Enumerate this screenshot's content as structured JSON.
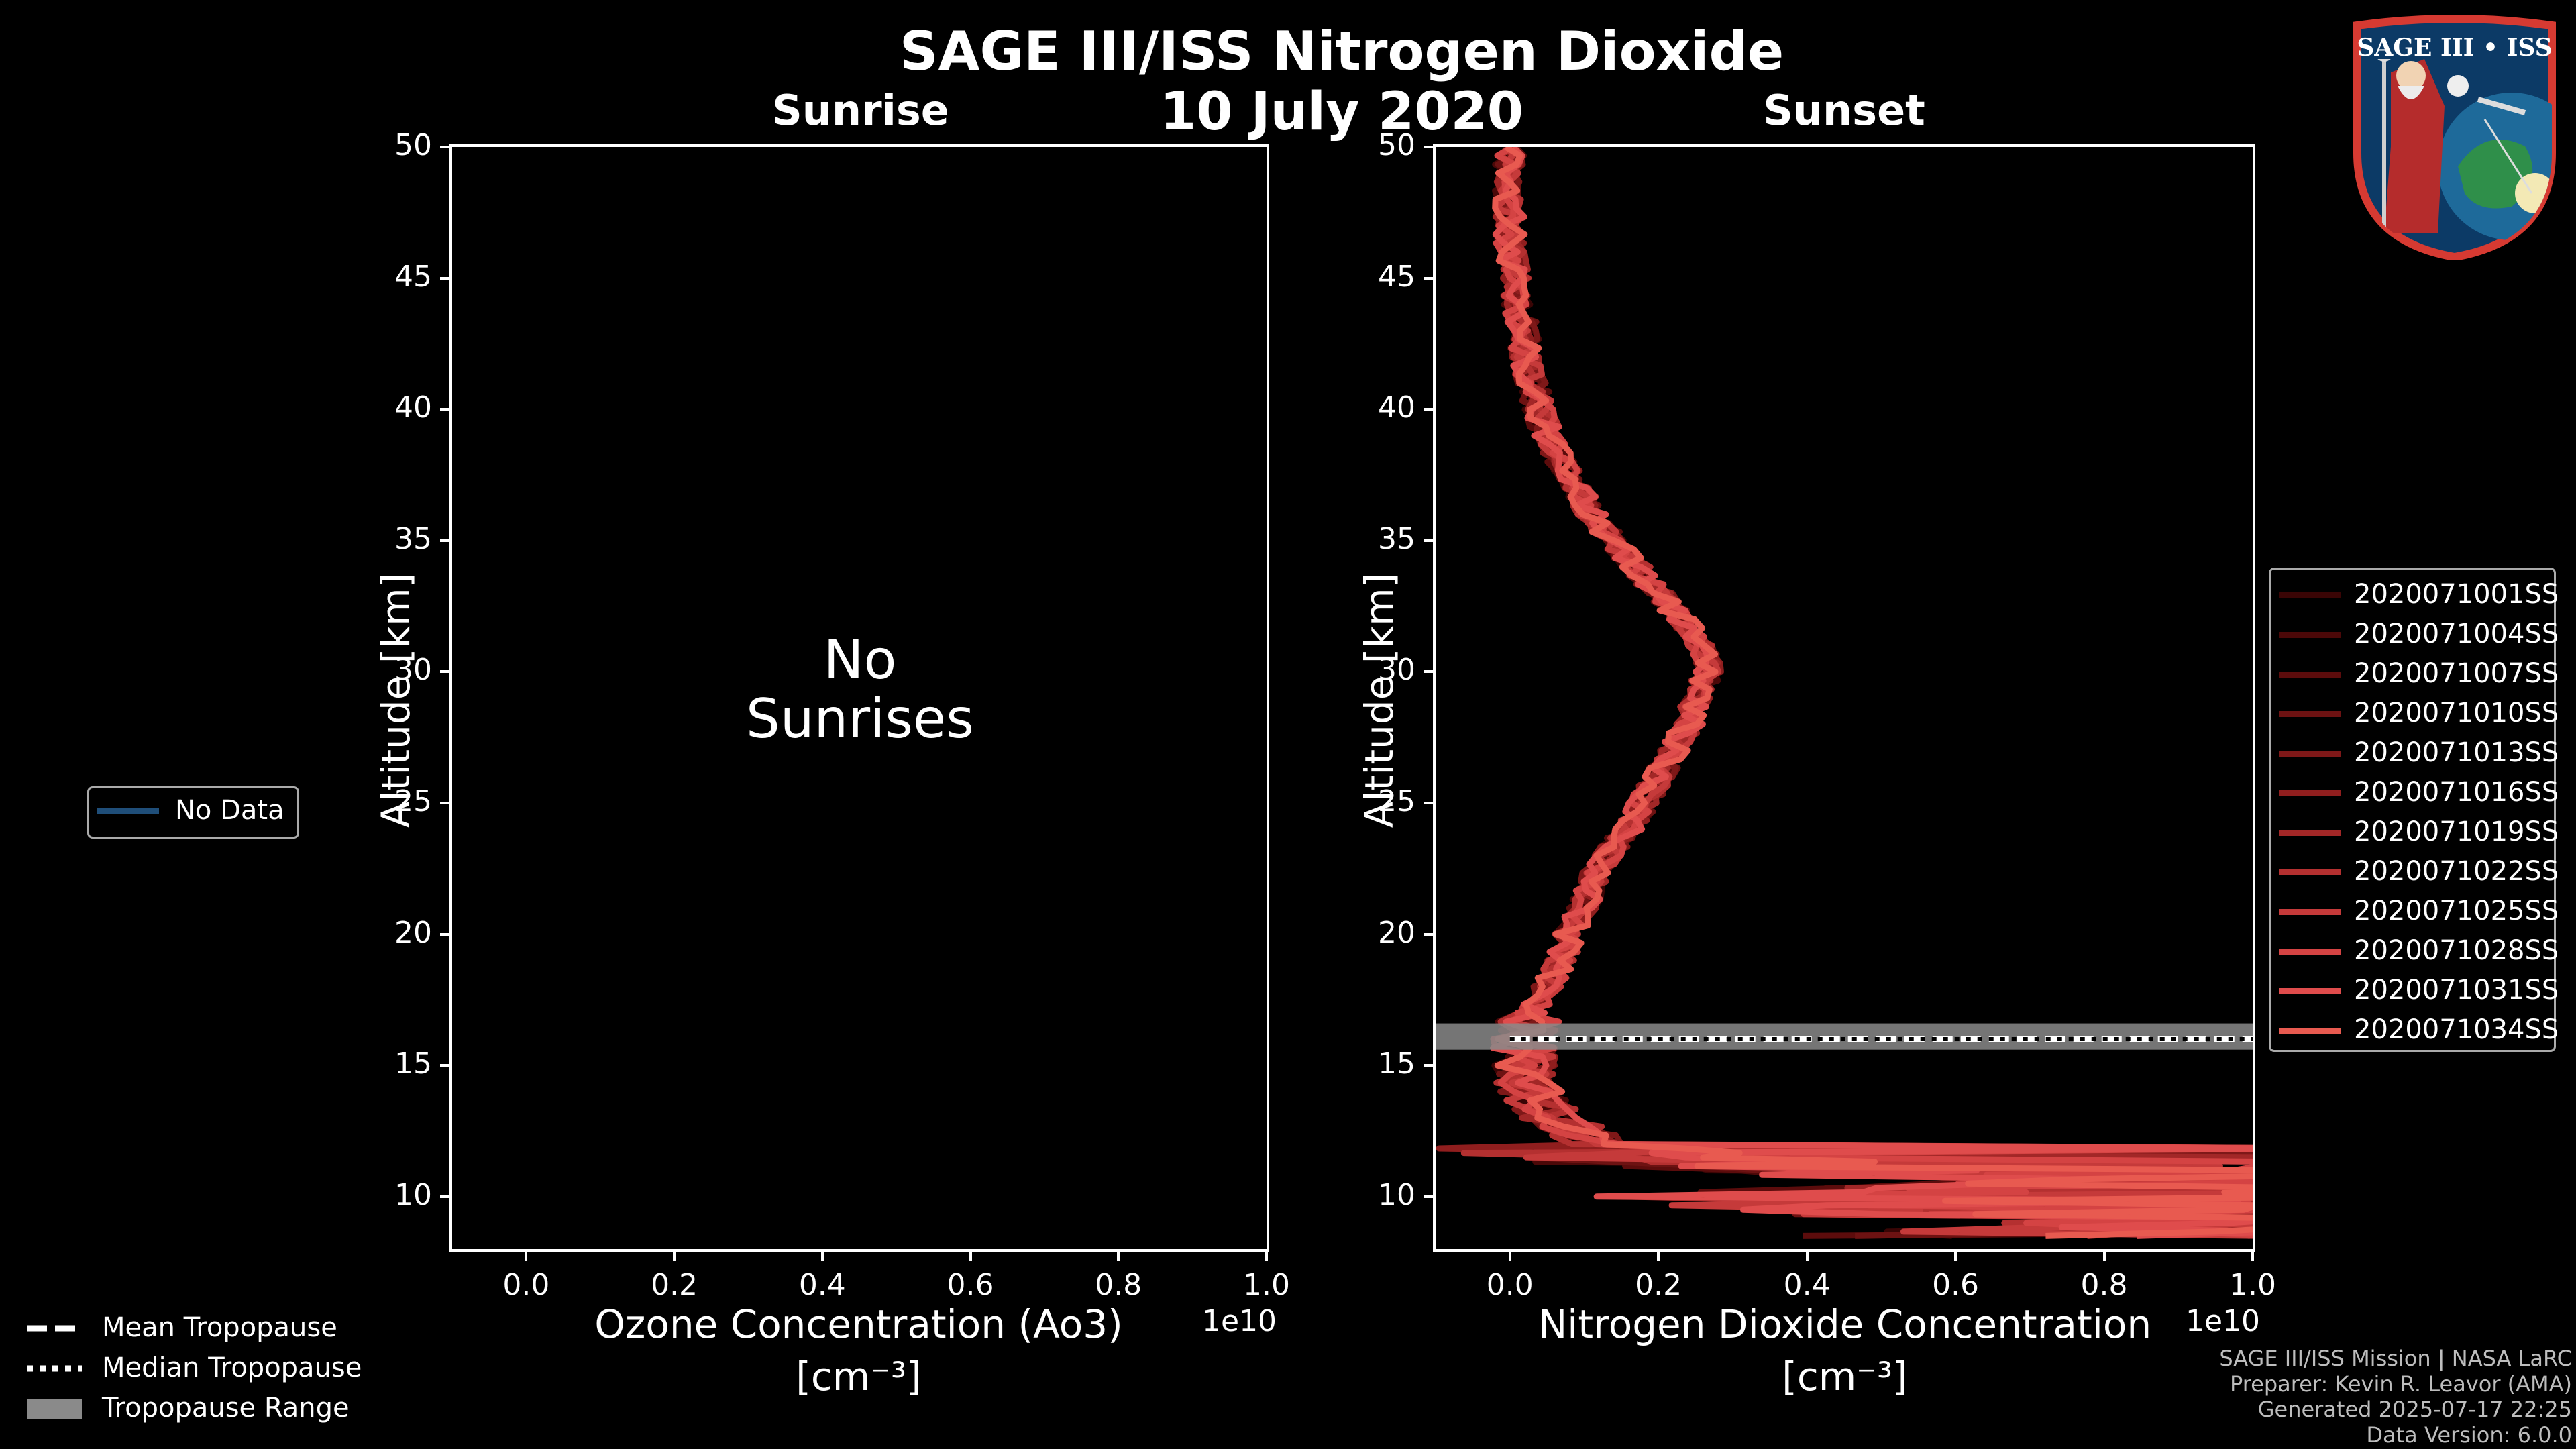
{
  "figure": {
    "title": "SAGE III/ISS Nitrogen Dioxide",
    "date": "10 July 2020",
    "logo_text": "SAGE III • ISS",
    "footer": [
      "SAGE III/ISS Mission | NASA LaRC",
      "Preparer: Kevin R. Leavor (AMA)",
      "Generated 2025-07-17 22:25",
      "Data Version: 6.0.0"
    ]
  },
  "sunrise_panel": {
    "title": "Sunrise",
    "message_line1": "No",
    "message_line2": "Sunrises",
    "xlabel_line1": "Ozone Concentration (Ao3)",
    "xlabel_line2": "[cm⁻³]",
    "ylabel": "Altitude [km]",
    "sci_label": "1e10",
    "legend": [
      {
        "label": "No Data",
        "color": "#1f4e79"
      }
    ]
  },
  "sunset_panel": {
    "title": "Sunset",
    "xlabel_line1": "Nitrogen Dioxide Concentration",
    "xlabel_line2": "[cm⁻³]",
    "ylabel": "Altitude [km]",
    "sci_label": "1e10"
  },
  "tropopause_legend": [
    {
      "label": "Mean Tropopause",
      "style": "dashed"
    },
    {
      "label": "Median Tropopause",
      "style": "dotted"
    },
    {
      "label": "Tropopause Range",
      "style": "band"
    }
  ],
  "chart_data": [
    {
      "type": "line",
      "title": "Sunrise",
      "xlabel": "Ozone Concentration (Ao3) [cm^-3]",
      "ylabel": "Altitude [km]",
      "x_scale_factor": "1e10",
      "xlim": [
        -0.1,
        1.0
      ],
      "ylim": [
        8,
        50
      ],
      "xticks": [
        0.0,
        0.2,
        0.4,
        0.6,
        0.8,
        1.0
      ],
      "yticks": [
        10,
        15,
        20,
        25,
        30,
        35,
        40,
        45,
        50
      ],
      "series": []
    },
    {
      "type": "line",
      "title": "Sunset",
      "xlabel": "Nitrogen Dioxide Concentration [cm^-3]",
      "ylabel": "Altitude [km]",
      "x_scale_factor": "1e10",
      "xlim": [
        -0.1,
        1.0
      ],
      "ylim": [
        8,
        50
      ],
      "xticks": [
        0.0,
        0.2,
        0.4,
        0.6,
        0.8,
        1.0
      ],
      "yticks": [
        10,
        15,
        20,
        25,
        30,
        35,
        40,
        45,
        50
      ],
      "legend_position": "right",
      "tropopause": {
        "mean_km": 16.0,
        "median_km": 16.0,
        "range_km": [
          15.6,
          16.6
        ]
      },
      "base_profile": {
        "altitude": [
          8.5,
          9,
          9.5,
          10,
          10.5,
          11,
          11.5,
          12,
          13,
          14,
          15,
          16,
          17,
          18,
          19,
          20,
          21,
          22,
          23,
          24,
          25,
          26,
          27,
          28,
          29,
          30,
          31,
          32,
          33,
          34,
          35,
          36,
          37,
          38,
          39,
          40,
          41,
          42,
          43,
          44,
          45,
          46,
          47,
          48,
          49,
          50
        ],
        "value": [
          0.6,
          0.9,
          0.5,
          0.35,
          0.8,
          0.4,
          0.2,
          0.12,
          0.06,
          0.03,
          0.02,
          0.02,
          0.03,
          0.05,
          0.07,
          0.08,
          0.1,
          0.11,
          0.13,
          0.16,
          0.18,
          0.2,
          0.22,
          0.24,
          0.25,
          0.27,
          0.26,
          0.23,
          0.2,
          0.17,
          0.14,
          0.11,
          0.09,
          0.07,
          0.05,
          0.04,
          0.03,
          0.02,
          0.02,
          0.01,
          0.01,
          0.0,
          0.0,
          0.0,
          0.0,
          0.0
        ]
      },
      "series": [
        {
          "name": "2020071001SS",
          "color": "#3a0505"
        },
        {
          "name": "2020071004SS",
          "color": "#4b0808"
        },
        {
          "name": "2020071007SS",
          "color": "#5c0c0c"
        },
        {
          "name": "2020071010SS",
          "color": "#6d1212"
        },
        {
          "name": "2020071013SS",
          "color": "#7e1818"
        },
        {
          "name": "2020071016SS",
          "color": "#901e1e"
        },
        {
          "name": "2020071019SS",
          "color": "#a22727"
        },
        {
          "name": "2020071022SS",
          "color": "#b43030"
        },
        {
          "name": "2020071025SS",
          "color": "#c53a3a"
        },
        {
          "name": "2020071028SS",
          "color": "#d44343"
        },
        {
          "name": "2020071031SS",
          "color": "#df4c4c"
        },
        {
          "name": "2020071034SS",
          "color": "#e85a50"
        }
      ]
    }
  ]
}
